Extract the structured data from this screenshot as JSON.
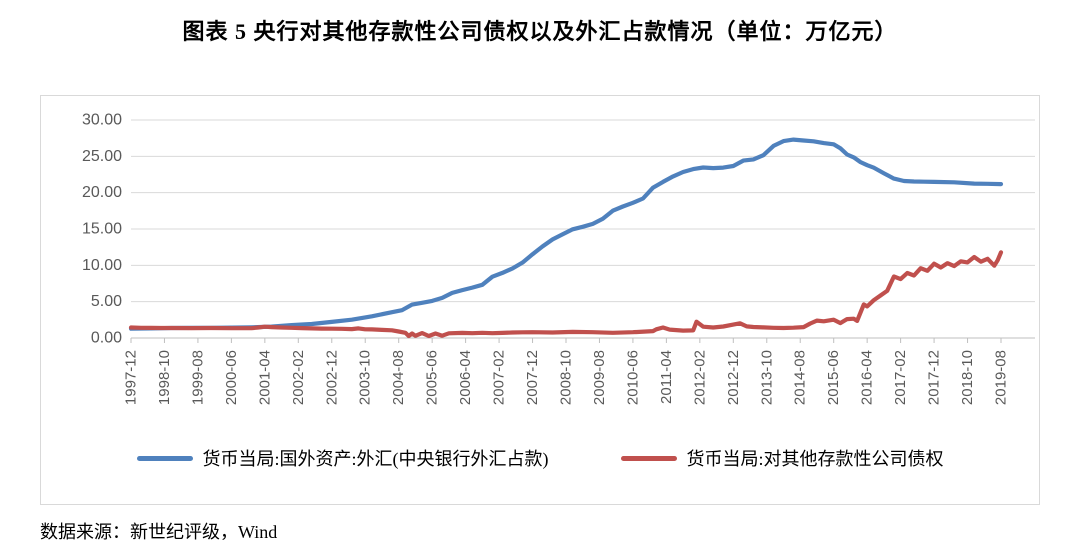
{
  "title": "图表 5  央行对其他存款性公司债权以及外汇占款情况（单位：万亿元）",
  "source_note": "数据来源：新世纪评级，Wind",
  "colors": {
    "series_fx_blue": "#4F81BD",
    "series_claims_red": "#C0504D",
    "gridline": "#D9D9D9",
    "axis_line": "#BFBFBF",
    "tick_label": "#595959",
    "frame_border": "#D9D9D9"
  },
  "chart_data": {
    "type": "line",
    "title": "央行对其他存款性公司债权以及外汇占款情况",
    "unit_label": "万亿元",
    "grid": "horizontal",
    "legend_position": "bottom",
    "ylim": [
      0,
      30
    ],
    "ytick_step": 5,
    "ytick_labels": [
      "0.00",
      "5.00",
      "10.00",
      "15.00",
      "20.00",
      "25.00",
      "30.00"
    ],
    "x_start": "1997-12",
    "x_end": "2019-08",
    "xtick_interval_months": 10,
    "xtick_labels": [
      "1997-12",
      "1998-10",
      "1999-08",
      "2000-06",
      "2001-04",
      "2002-02",
      "2002-12",
      "2003-10",
      "2004-08",
      "2005-06",
      "2006-04",
      "2007-02",
      "2007-12",
      "2008-10",
      "2009-08",
      "2010-06",
      "2011-04",
      "2012-02",
      "2012-12",
      "2013-10",
      "2014-08",
      "2015-06",
      "2016-04",
      "2017-02",
      "2017-12",
      "2018-10",
      "2019-08"
    ],
    "series": [
      {
        "name": "货币当局:国外资产:外汇(中央银行外汇占款)",
        "color": "#4F81BD",
        "points": [
          [
            "1997-12",
            1.28
          ],
          [
            "1998-06",
            1.32
          ],
          [
            "1998-12",
            1.37
          ],
          [
            "1999-06",
            1.39
          ],
          [
            "1999-12",
            1.41
          ],
          [
            "2000-06",
            1.43
          ],
          [
            "2000-12",
            1.47
          ],
          [
            "2001-06",
            1.57
          ],
          [
            "2001-12",
            1.77
          ],
          [
            "2002-06",
            1.93
          ],
          [
            "2002-12",
            2.21
          ],
          [
            "2003-06",
            2.52
          ],
          [
            "2003-12",
            2.98
          ],
          [
            "2004-06",
            3.55
          ],
          [
            "2004-09",
            3.83
          ],
          [
            "2004-12",
            4.59
          ],
          [
            "2005-03",
            4.85
          ],
          [
            "2005-06",
            5.1
          ],
          [
            "2005-09",
            5.52
          ],
          [
            "2005-12",
            6.21
          ],
          [
            "2006-03",
            6.59
          ],
          [
            "2006-06",
            6.93
          ],
          [
            "2006-09",
            7.32
          ],
          [
            "2006-12",
            8.44
          ],
          [
            "2007-03",
            8.96
          ],
          [
            "2007-06",
            9.58
          ],
          [
            "2007-09",
            10.37
          ],
          [
            "2007-12",
            11.52
          ],
          [
            "2008-03",
            12.61
          ],
          [
            "2008-06",
            13.57
          ],
          [
            "2008-09",
            14.29
          ],
          [
            "2008-12",
            14.96
          ],
          [
            "2009-03",
            15.3
          ],
          [
            "2009-06",
            15.7
          ],
          [
            "2009-09",
            16.4
          ],
          [
            "2009-12",
            17.52
          ],
          [
            "2010-03",
            18.1
          ],
          [
            "2010-06",
            18.6
          ],
          [
            "2010-09",
            19.2
          ],
          [
            "2010-12",
            20.68
          ],
          [
            "2011-03",
            21.48
          ],
          [
            "2011-06",
            22.24
          ],
          [
            "2011-09",
            22.85
          ],
          [
            "2011-12",
            23.24
          ],
          [
            "2012-03",
            23.47
          ],
          [
            "2012-06",
            23.38
          ],
          [
            "2012-09",
            23.45
          ],
          [
            "2012-12",
            23.67
          ],
          [
            "2013-03",
            24.41
          ],
          [
            "2013-06",
            24.58
          ],
          [
            "2013-09",
            25.16
          ],
          [
            "2013-12",
            26.43
          ],
          [
            "2014-03",
            27.1
          ],
          [
            "2014-06",
            27.3
          ],
          [
            "2014-09",
            27.18
          ],
          [
            "2014-12",
            27.07
          ],
          [
            "2015-03",
            26.82
          ],
          [
            "2015-06",
            26.66
          ],
          [
            "2015-08",
            26.1
          ],
          [
            "2015-10",
            25.25
          ],
          [
            "2015-12",
            24.85
          ],
          [
            "2016-02",
            24.2
          ],
          [
            "2016-04",
            23.78
          ],
          [
            "2016-06",
            23.43
          ],
          [
            "2016-09",
            22.66
          ],
          [
            "2016-12",
            21.94
          ],
          [
            "2017-03",
            21.61
          ],
          [
            "2017-06",
            21.53
          ],
          [
            "2017-09",
            21.51
          ],
          [
            "2017-12",
            21.48
          ],
          [
            "2018-06",
            21.42
          ],
          [
            "2018-12",
            21.25
          ],
          [
            "2019-04",
            21.22
          ],
          [
            "2019-08",
            21.18
          ]
        ]
      },
      {
        "name": "货币当局:对其他存款性公司债权",
        "color": "#C0504D",
        "points": [
          [
            "1997-12",
            1.44
          ],
          [
            "1998-03",
            1.41
          ],
          [
            "1998-06",
            1.39
          ],
          [
            "1998-09",
            1.38
          ],
          [
            "1998-12",
            1.37
          ],
          [
            "1999-06",
            1.36
          ],
          [
            "1999-12",
            1.37
          ],
          [
            "2000-06",
            1.35
          ],
          [
            "2000-12",
            1.35
          ],
          [
            "2001-02",
            1.44
          ],
          [
            "2001-04",
            1.55
          ],
          [
            "2001-06",
            1.5
          ],
          [
            "2001-09",
            1.44
          ],
          [
            "2001-12",
            1.4
          ],
          [
            "2002-03",
            1.36
          ],
          [
            "2002-06",
            1.32
          ],
          [
            "2002-09",
            1.3
          ],
          [
            "2002-12",
            1.28
          ],
          [
            "2003-03",
            1.26
          ],
          [
            "2003-06",
            1.22
          ],
          [
            "2003-08",
            1.32
          ],
          [
            "2003-10",
            1.2
          ],
          [
            "2003-12",
            1.18
          ],
          [
            "2004-03",
            1.12
          ],
          [
            "2004-06",
            1.06
          ],
          [
            "2004-08",
            0.9
          ],
          [
            "2004-10",
            0.72
          ],
          [
            "2004-11",
            0.28
          ],
          [
            "2004-12",
            0.62
          ],
          [
            "2005-01",
            0.3
          ],
          [
            "2005-03",
            0.68
          ],
          [
            "2005-05",
            0.28
          ],
          [
            "2005-07",
            0.62
          ],
          [
            "2005-09",
            0.32
          ],
          [
            "2005-11",
            0.65
          ],
          [
            "2006-03",
            0.7
          ],
          [
            "2006-06",
            0.66
          ],
          [
            "2006-09",
            0.72
          ],
          [
            "2006-12",
            0.66
          ],
          [
            "2007-03",
            0.7
          ],
          [
            "2007-06",
            0.76
          ],
          [
            "2007-09",
            0.79
          ],
          [
            "2007-12",
            0.8
          ],
          [
            "2008-06",
            0.76
          ],
          [
            "2008-12",
            0.84
          ],
          [
            "2009-06",
            0.8
          ],
          [
            "2009-12",
            0.72
          ],
          [
            "2010-06",
            0.8
          ],
          [
            "2010-12",
            0.95
          ],
          [
            "2011-01",
            1.2
          ],
          [
            "2011-03",
            1.45
          ],
          [
            "2011-05",
            1.15
          ],
          [
            "2011-09",
            1.02
          ],
          [
            "2011-12",
            1.05
          ],
          [
            "2012-01",
            2.25
          ],
          [
            "2012-03",
            1.55
          ],
          [
            "2012-06",
            1.45
          ],
          [
            "2012-09",
            1.58
          ],
          [
            "2012-12",
            1.85
          ],
          [
            "2013-02",
            2.02
          ],
          [
            "2013-04",
            1.6
          ],
          [
            "2013-06",
            1.52
          ],
          [
            "2013-09",
            1.46
          ],
          [
            "2013-12",
            1.4
          ],
          [
            "2014-03",
            1.38
          ],
          [
            "2014-06",
            1.42
          ],
          [
            "2014-09",
            1.5
          ],
          [
            "2014-11",
            2.0
          ],
          [
            "2015-01",
            2.4
          ],
          [
            "2015-03",
            2.3
          ],
          [
            "2015-06",
            2.52
          ],
          [
            "2015-08",
            2.05
          ],
          [
            "2015-10",
            2.6
          ],
          [
            "2015-12",
            2.66
          ],
          [
            "2016-01",
            2.35
          ],
          [
            "2016-03",
            4.62
          ],
          [
            "2016-04",
            4.35
          ],
          [
            "2016-06",
            5.2
          ],
          [
            "2016-08",
            5.85
          ],
          [
            "2016-10",
            6.5
          ],
          [
            "2016-12",
            8.47
          ],
          [
            "2017-02",
            8.1
          ],
          [
            "2017-04",
            8.95
          ],
          [
            "2017-06",
            8.6
          ],
          [
            "2017-08",
            9.6
          ],
          [
            "2017-10",
            9.25
          ],
          [
            "2017-12",
            10.22
          ],
          [
            "2018-02",
            9.7
          ],
          [
            "2018-04",
            10.3
          ],
          [
            "2018-06",
            9.9
          ],
          [
            "2018-08",
            10.55
          ],
          [
            "2018-10",
            10.4
          ],
          [
            "2018-12",
            11.15
          ],
          [
            "2019-02",
            10.5
          ],
          [
            "2019-04",
            10.9
          ],
          [
            "2019-06",
            9.95
          ],
          [
            "2019-07",
            10.7
          ],
          [
            "2019-08",
            11.8
          ]
        ]
      }
    ]
  }
}
